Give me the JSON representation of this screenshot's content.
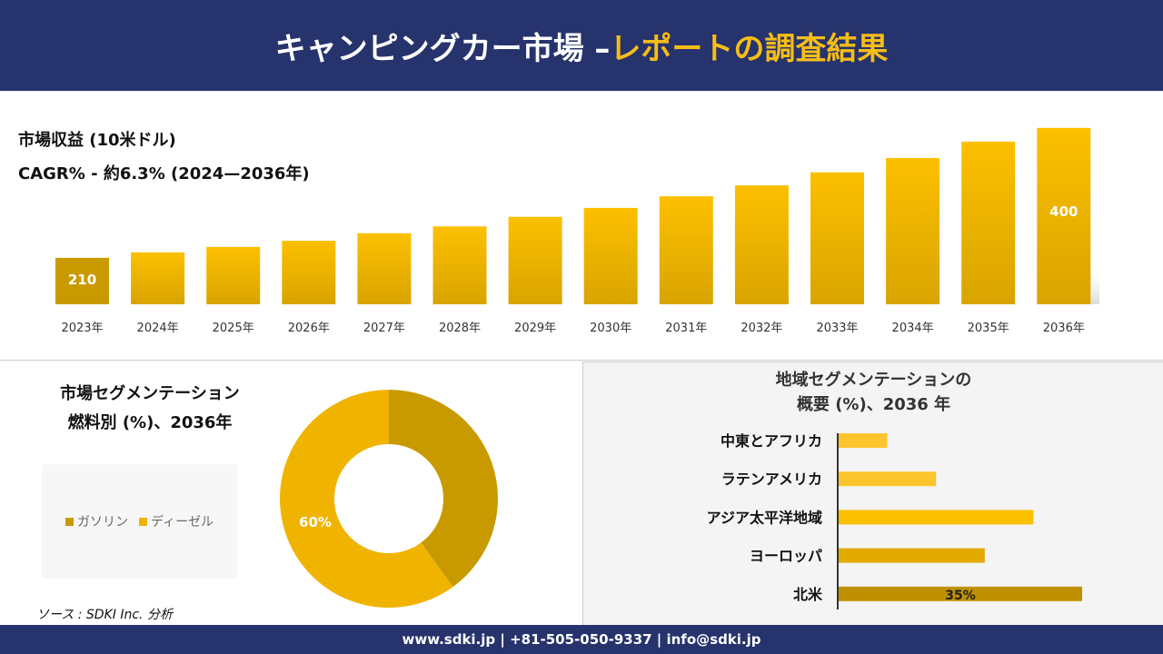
{
  "header": {
    "title_white": "キャンピングカー市場 –",
    "title_yellow": "レポートの調査結果"
  },
  "colors": {
    "navy": "#26336d",
    "gold": "#f6bd16",
    "gasoline": "#c89a00",
    "diesel": "#f0b400"
  },
  "chart_data": [
    {
      "type": "bar",
      "title": "市場収益 (10米ドル)",
      "subtitle": "CAGR% - 約6.3% (2024—2036年)",
      "categories": [
        "2023年",
        "2024年",
        "2025年",
        "2026年",
        "2027年",
        "2028年",
        "2029年",
        "2030年",
        "2031年",
        "2032年",
        "2033年",
        "2034年",
        "2035年",
        "2036年"
      ],
      "values": [
        210,
        218,
        226,
        235,
        246,
        256,
        270,
        283,
        300,
        316,
        335,
        356,
        380,
        400
      ],
      "data_labels": {
        "0": "210",
        "13": "400"
      },
      "grid": false
    },
    {
      "type": "pie",
      "title_line1": "市場セグメンテーション",
      "title_line2": "燃料別 (%)、2036年",
      "series": [
        {
          "name": "ガソリン",
          "value": 40
        },
        {
          "name": "ディーゼル",
          "value": 60
        }
      ],
      "data_labels": {
        "1": "60%"
      },
      "legend": "left"
    },
    {
      "type": "bar",
      "orientation": "horizontal",
      "title_line1": "地域セグメンテーションの",
      "title_line2": "概要 (%)、2036 年",
      "categories": [
        "中東とアフリカ",
        "ラテンアメリカ",
        "アジア太平洋地域",
        "ヨーロッパ",
        "北米"
      ],
      "values": [
        7,
        14,
        28,
        21,
        35
      ],
      "bar_colors": [
        "#fcc52e",
        "#fcc52e",
        "#fcc000",
        "#e2aa00",
        "#bf9000"
      ],
      "data_labels": {
        "4": "35%"
      }
    }
  ],
  "source": "ソース : SDKI Inc. 分析",
  "footer": "www.sdki.jp | +81-505-050-9337 | info@sdki.jp"
}
